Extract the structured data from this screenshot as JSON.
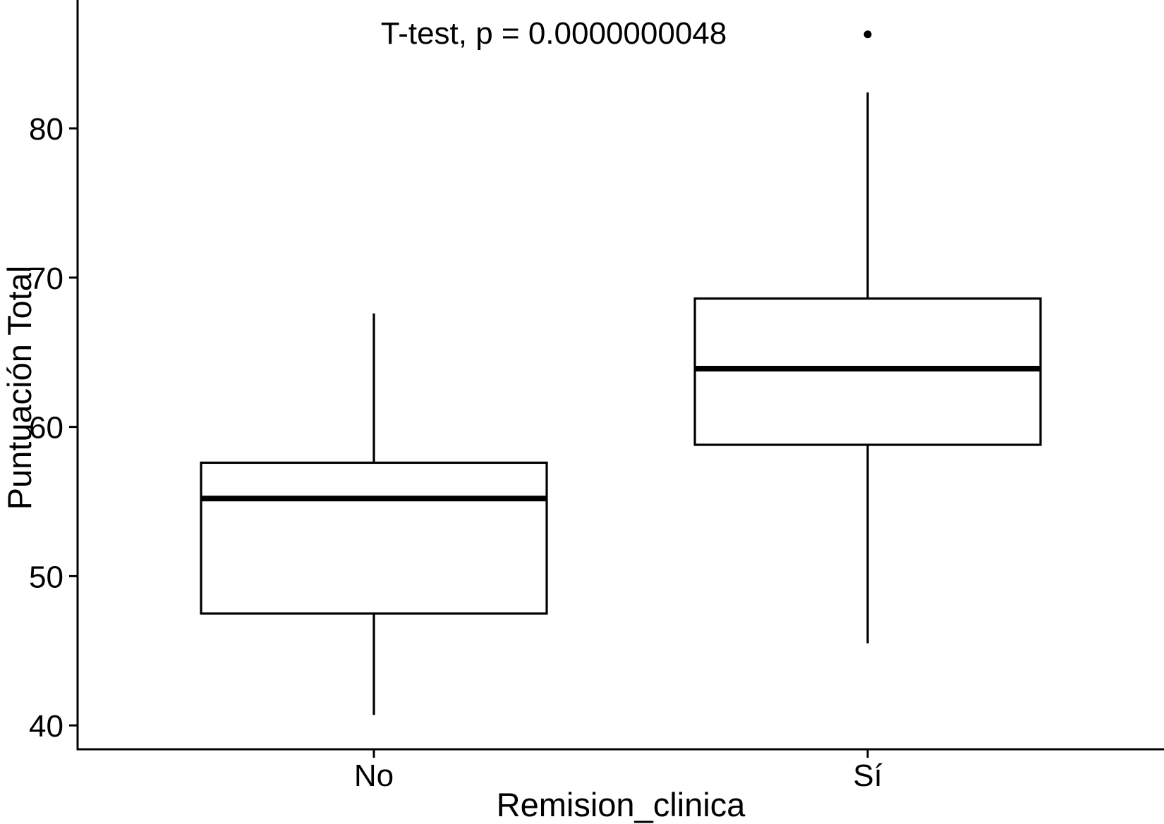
{
  "figure": {
    "background_color": "#ffffff",
    "stroke_color": "#000000"
  },
  "chart_data": {
    "type": "boxplot",
    "annotation": "T-test, p = 0.0000000048",
    "xlabel": "Remision_clinica",
    "ylabel": "Puntuación Total",
    "categories": [
      "No",
      "Sí"
    ],
    "yticks": [
      40,
      50,
      60,
      70,
      80
    ],
    "ylim": [
      38.4,
      88.6
    ],
    "grid": false,
    "legend": "none",
    "box_fill": "#ffffff",
    "box_stroke": "#000000",
    "series": [
      {
        "name": "No",
        "whisker_low": 40.7,
        "q1": 47.5,
        "median": 55.2,
        "q3": 57.6,
        "whisker_high": 67.6,
        "outliers": []
      },
      {
        "name": "Sí",
        "whisker_low": 45.5,
        "q1": 58.8,
        "median": 63.9,
        "q3": 68.6,
        "whisker_high": 82.4,
        "outliers": [
          86.3
        ]
      }
    ]
  }
}
